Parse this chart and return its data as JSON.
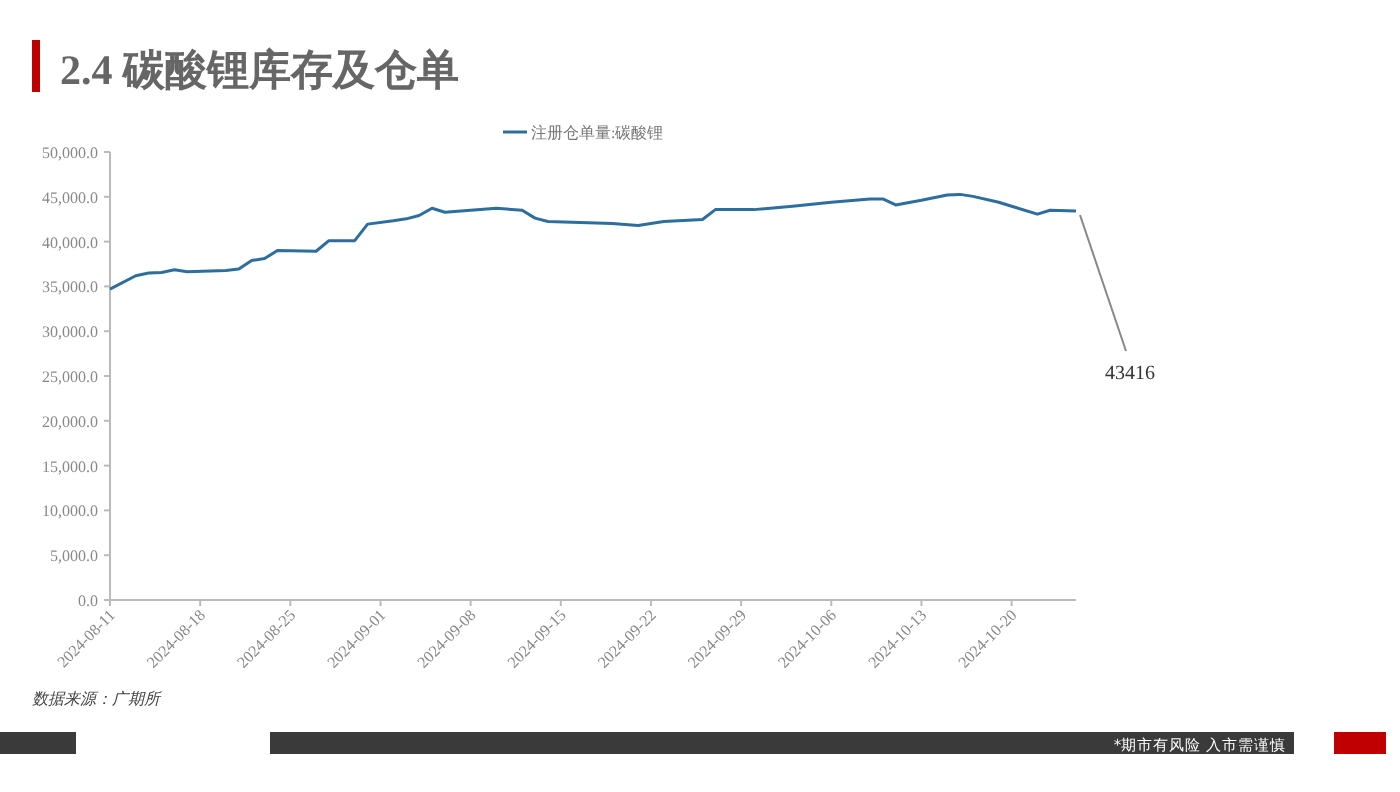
{
  "chart_data": {
    "type": "line",
    "title": "2.4 碳酸锂库存及仓单",
    "x": [
      "2024-08-11",
      "2024-08-13",
      "2024-08-14",
      "2024-08-15",
      "2024-08-16",
      "2024-08-17",
      "2024-08-20",
      "2024-08-21",
      "2024-08-22",
      "2024-08-23",
      "2024-08-24",
      "2024-08-27",
      "2024-08-28",
      "2024-08-30",
      "2024-08-31",
      "2024-09-02",
      "2024-09-03",
      "2024-09-04",
      "2024-09-05",
      "2024-09-06",
      "2024-09-08",
      "2024-09-10",
      "2024-09-12",
      "2024-09-13",
      "2024-09-14",
      "2024-09-19",
      "2024-09-21",
      "2024-09-23",
      "2024-09-26",
      "2024-09-27",
      "2024-09-30",
      "2024-10-03",
      "2024-10-06",
      "2024-10-09",
      "2024-10-10",
      "2024-10-11",
      "2024-10-13",
      "2024-10-15",
      "2024-10-16",
      "2024-10-17",
      "2024-10-19",
      "2024-10-20",
      "2024-10-22",
      "2024-10-23",
      "2024-10-25"
    ],
    "series": [
      {
        "name": "注册仓单量:碳酸锂",
        "color": "#2e6e9e",
        "values": [
          34700,
          36190,
          36490,
          36560,
          36860,
          36640,
          36780,
          36930,
          37890,
          38110,
          39000,
          38920,
          40100,
          40100,
          41950,
          42320,
          42540,
          42910,
          43720,
          43280,
          43500,
          43720,
          43500,
          42620,
          42250,
          42030,
          41800,
          42250,
          42470,
          43570,
          43570,
          43950,
          44390,
          44760,
          44760,
          44090,
          44610,
          45200,
          45270,
          45050,
          44390,
          43950,
          43060,
          43500,
          43416
        ]
      }
    ],
    "xlim": [
      "2024-08-11",
      "2024-10-25"
    ],
    "xticks": [
      {
        "value": "2024-08-11",
        "label": "2024-08-11"
      },
      {
        "value": "2024-08-18",
        "label": "2024-08-18"
      },
      {
        "value": "2024-08-25",
        "label": "2024-08-25"
      },
      {
        "value": "2024-09-01",
        "label": "2024-09-01"
      },
      {
        "value": "2024-09-08",
        "label": "2024-09-08"
      },
      {
        "value": "2024-09-15",
        "label": "2024-09-15"
      },
      {
        "value": "2024-09-22",
        "label": "2024-09-22"
      },
      {
        "value": "2024-09-29",
        "label": "2024-09-29"
      },
      {
        "value": "2024-10-06",
        "label": "2024-10-06"
      },
      {
        "value": "2024-10-13",
        "label": "2024-10-13"
      },
      {
        "value": "2024-10-20",
        "label": "2024-10-20"
      }
    ],
    "ylim": [
      0,
      50000
    ],
    "yticks": [
      {
        "value": 0,
        "label": "0.0"
      },
      {
        "value": 5000,
        "label": "5,000.0"
      },
      {
        "value": 10000,
        "label": "10,000.0"
      },
      {
        "value": 15000,
        "label": "15,000.0"
      },
      {
        "value": 20000,
        "label": "20,000.0"
      },
      {
        "value": 25000,
        "label": "25,000.0"
      },
      {
        "value": 30000,
        "label": "30,000.0"
      },
      {
        "value": 35000,
        "label": "35,000.0"
      },
      {
        "value": 40000,
        "label": "40,000.0"
      },
      {
        "value": 45000,
        "label": "45,000.0"
      },
      {
        "value": 50000,
        "label": "50,000.0"
      }
    ],
    "legend": "top",
    "annotations": [
      {
        "text": "43416",
        "x": "2024-10-25",
        "y": 43416
      },
      "数据来源：广期所",
      "*期市有风险  入市需谨慎"
    ]
  }
}
